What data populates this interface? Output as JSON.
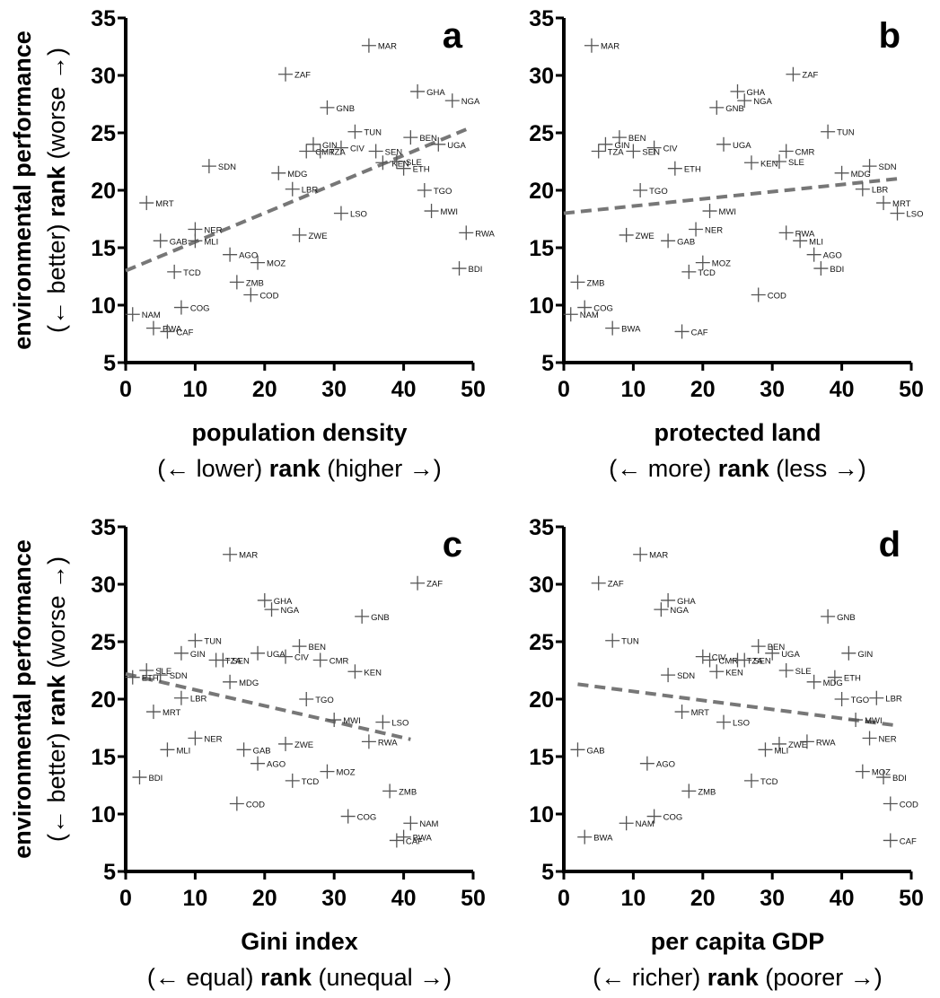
{
  "ylabel": {
    "line1": "environmental performance",
    "line2_pre": "(← better) ",
    "line2_bold": "rank",
    "line2_post": " (worse →)"
  },
  "chart_data": [
    {
      "type": "scatter",
      "panel": "a",
      "xtitle": "population density",
      "xsub": {
        "pre": "(← lower) ",
        "bold": "rank",
        "post": " (higher →)"
      },
      "xlim": [
        0,
        50
      ],
      "ylim": [
        5,
        35
      ],
      "xticks": [
        0,
        10,
        20,
        30,
        40,
        50
      ],
      "yticks": [
        5,
        10,
        15,
        20,
        25,
        30,
        35
      ],
      "trend": [
        [
          0,
          13
        ],
        [
          49,
          25.3
        ]
      ],
      "points": [
        {
          "label": "MAR",
          "x": 35,
          "y": 32.6
        },
        {
          "label": "ZAF",
          "x": 23,
          "y": 30.1
        },
        {
          "label": "GHA",
          "x": 42,
          "y": 28.6
        },
        {
          "label": "NGA",
          "x": 47,
          "y": 27.8
        },
        {
          "label": "GNB",
          "x": 29,
          "y": 27.2
        },
        {
          "label": "TUN",
          "x": 33,
          "y": 25.1
        },
        {
          "label": "BEN",
          "x": 41,
          "y": 24.6
        },
        {
          "label": "UGA",
          "x": 45,
          "y": 24.0
        },
        {
          "label": "GIN",
          "x": 27,
          "y": 24.0
        },
        {
          "label": "CMR",
          "x": 26,
          "y": 23.4
        },
        {
          "label": "TZA",
          "x": 28,
          "y": 23.4
        },
        {
          "label": "CIV",
          "x": 31,
          "y": 23.7
        },
        {
          "label": "SEN",
          "x": 36,
          "y": 23.4
        },
        {
          "label": "KEN",
          "x": 37,
          "y": 22.4
        },
        {
          "label": "SLE",
          "x": 39,
          "y": 22.5
        },
        {
          "label": "ETH",
          "x": 40,
          "y": 21.9
        },
        {
          "label": "SDN",
          "x": 12,
          "y": 22.1
        },
        {
          "label": "MDG",
          "x": 22,
          "y": 21.5
        },
        {
          "label": "LBR",
          "x": 24,
          "y": 20.1
        },
        {
          "label": "TGO",
          "x": 43,
          "y": 20.0
        },
        {
          "label": "MRT",
          "x": 3,
          "y": 18.9
        },
        {
          "label": "MWI",
          "x": 44,
          "y": 18.2
        },
        {
          "label": "LSO",
          "x": 31,
          "y": 18.0
        },
        {
          "label": "NER",
          "x": 10,
          "y": 16.6
        },
        {
          "label": "RWA",
          "x": 49,
          "y": 16.3
        },
        {
          "label": "ZWE",
          "x": 25,
          "y": 16.1
        },
        {
          "label": "GAB",
          "x": 5,
          "y": 15.6
        },
        {
          "label": "MLI",
          "x": 10,
          "y": 15.6
        },
        {
          "label": "AGO",
          "x": 15,
          "y": 14.4
        },
        {
          "label": "MOZ",
          "x": 19,
          "y": 13.7
        },
        {
          "label": "BDI",
          "x": 48,
          "y": 13.2
        },
        {
          "label": "TCD",
          "x": 7,
          "y": 12.9
        },
        {
          "label": "ZMB",
          "x": 16,
          "y": 12.0
        },
        {
          "label": "COD",
          "x": 18,
          "y": 10.9
        },
        {
          "label": "COG",
          "x": 8,
          "y": 9.8
        },
        {
          "label": "NAM",
          "x": 1,
          "y": 9.2
        },
        {
          "label": "BWA",
          "x": 4,
          "y": 8.0
        },
        {
          "label": "CAF",
          "x": 6,
          "y": 7.7
        }
      ]
    },
    {
      "type": "scatter",
      "panel": "b",
      "xtitle": "protected land",
      "xsub": {
        "pre": "(← more) ",
        "bold": "rank",
        "post": " (less →)"
      },
      "xlim": [
        0,
        50
      ],
      "ylim": [
        5,
        35
      ],
      "xticks": [
        0,
        10,
        20,
        30,
        40,
        50
      ],
      "yticks": [
        5,
        10,
        15,
        20,
        25,
        30,
        35
      ],
      "trend": [
        [
          0,
          18
        ],
        [
          48,
          21
        ]
      ],
      "points": [
        {
          "label": "MAR",
          "x": 4,
          "y": 32.6
        },
        {
          "label": "ZAF",
          "x": 33,
          "y": 30.1
        },
        {
          "label": "GHA",
          "x": 25,
          "y": 28.6
        },
        {
          "label": "NGA",
          "x": 26,
          "y": 27.8
        },
        {
          "label": "GNB",
          "x": 22,
          "y": 27.2
        },
        {
          "label": "TUN",
          "x": 38,
          "y": 25.1
        },
        {
          "label": "BEN",
          "x": 8,
          "y": 24.6
        },
        {
          "label": "GIN",
          "x": 6,
          "y": 24.0
        },
        {
          "label": "TZA",
          "x": 5,
          "y": 23.4
        },
        {
          "label": "SEN",
          "x": 10,
          "y": 23.4
        },
        {
          "label": "CIV",
          "x": 13,
          "y": 23.7
        },
        {
          "label": "UGA",
          "x": 23,
          "y": 24.0
        },
        {
          "label": "CMR",
          "x": 32,
          "y": 23.4
        },
        {
          "label": "KEN",
          "x": 27,
          "y": 22.4
        },
        {
          "label": "SLE",
          "x": 31,
          "y": 22.5
        },
        {
          "label": "ETH",
          "x": 16,
          "y": 21.9
        },
        {
          "label": "SDN",
          "x": 44,
          "y": 22.1
        },
        {
          "label": "MDG",
          "x": 40,
          "y": 21.5
        },
        {
          "label": "LBR",
          "x": 43,
          "y": 20.1
        },
        {
          "label": "TGO",
          "x": 11,
          "y": 20.0
        },
        {
          "label": "MRT",
          "x": 46,
          "y": 18.9
        },
        {
          "label": "MWI",
          "x": 21,
          "y": 18.2
        },
        {
          "label": "LSO",
          "x": 48,
          "y": 18.0
        },
        {
          "label": "NER",
          "x": 19,
          "y": 16.6
        },
        {
          "label": "RWA",
          "x": 32,
          "y": 16.3
        },
        {
          "label": "ZWE",
          "x": 9,
          "y": 16.1
        },
        {
          "label": "GAB",
          "x": 15,
          "y": 15.6
        },
        {
          "label": "MLI",
          "x": 34,
          "y": 15.6
        },
        {
          "label": "AGO",
          "x": 36,
          "y": 14.4
        },
        {
          "label": "MOZ",
          "x": 20,
          "y": 13.7
        },
        {
          "label": "BDI",
          "x": 37,
          "y": 13.2
        },
        {
          "label": "TCD",
          "x": 18,
          "y": 12.9
        },
        {
          "label": "ZMB",
          "x": 2,
          "y": 12.0
        },
        {
          "label": "COD",
          "x": 28,
          "y": 10.9
        },
        {
          "label": "COG",
          "x": 3,
          "y": 9.8
        },
        {
          "label": "NAM",
          "x": 1,
          "y": 9.2
        },
        {
          "label": "BWA",
          "x": 7,
          "y": 8.0
        },
        {
          "label": "CAF",
          "x": 17,
          "y": 7.7
        }
      ]
    },
    {
      "type": "scatter",
      "panel": "c",
      "xtitle": "Gini index",
      "xsub": {
        "pre": "(← equal) ",
        "bold": "rank",
        "post": " (unequal →)"
      },
      "xlim": [
        0,
        50
      ],
      "ylim": [
        5,
        35
      ],
      "xticks": [
        0,
        10,
        20,
        30,
        40,
        50
      ],
      "yticks": [
        5,
        10,
        15,
        20,
        25,
        30,
        35
      ],
      "trend": [
        [
          0,
          22.2
        ],
        [
          41,
          16.5
        ]
      ],
      "points": [
        {
          "label": "MAR",
          "x": 15,
          "y": 32.6
        },
        {
          "label": "ZAF",
          "x": 42,
          "y": 30.1
        },
        {
          "label": "GHA",
          "x": 20,
          "y": 28.6
        },
        {
          "label": "NGA",
          "x": 21,
          "y": 27.8
        },
        {
          "label": "GNB",
          "x": 34,
          "y": 27.2
        },
        {
          "label": "TUN",
          "x": 10,
          "y": 25.1
        },
        {
          "label": "BEN",
          "x": 25,
          "y": 24.6
        },
        {
          "label": "GIN",
          "x": 8,
          "y": 24.0
        },
        {
          "label": "TZA",
          "x": 13,
          "y": 23.4
        },
        {
          "label": "SEN",
          "x": 14,
          "y": 23.4
        },
        {
          "label": "UGA",
          "x": 19,
          "y": 24.0
        },
        {
          "label": "CIV",
          "x": 23,
          "y": 23.7
        },
        {
          "label": "CMR",
          "x": 28,
          "y": 23.4
        },
        {
          "label": "KEN",
          "x": 33,
          "y": 22.4
        },
        {
          "label": "SLE",
          "x": 3,
          "y": 22.5
        },
        {
          "label": "ETH",
          "x": 1,
          "y": 21.9
        },
        {
          "label": "SDN",
          "x": 5,
          "y": 22.1
        },
        {
          "label": "MDG",
          "x": 15,
          "y": 21.5
        },
        {
          "label": "LBR",
          "x": 8,
          "y": 20.1
        },
        {
          "label": "TGO",
          "x": 26,
          "y": 20.0
        },
        {
          "label": "MRT",
          "x": 4,
          "y": 18.9
        },
        {
          "label": "MWI",
          "x": 30,
          "y": 18.2
        },
        {
          "label": "LSO",
          "x": 37,
          "y": 18.0
        },
        {
          "label": "NER",
          "x": 10,
          "y": 16.6
        },
        {
          "label": "RWA",
          "x": 35,
          "y": 16.3
        },
        {
          "label": "ZWE",
          "x": 23,
          "y": 16.1
        },
        {
          "label": "GAB",
          "x": 17,
          "y": 15.6
        },
        {
          "label": "MLI",
          "x": 6,
          "y": 15.6
        },
        {
          "label": "AGO",
          "x": 19,
          "y": 14.4
        },
        {
          "label": "MOZ",
          "x": 29,
          "y": 13.7
        },
        {
          "label": "BDI",
          "x": 2,
          "y": 13.2
        },
        {
          "label": "TCD",
          "x": 24,
          "y": 12.9
        },
        {
          "label": "ZMB",
          "x": 38,
          "y": 12.0
        },
        {
          "label": "COD",
          "x": 16,
          "y": 10.9
        },
        {
          "label": "COG",
          "x": 32,
          "y": 9.8
        },
        {
          "label": "NAM",
          "x": 41,
          "y": 9.2
        },
        {
          "label": "BWA",
          "x": 40,
          "y": 8.0
        },
        {
          "label": "CAF",
          "x": 39,
          "y": 7.7
        }
      ]
    },
    {
      "type": "scatter",
      "panel": "d",
      "xtitle": "per capita GDP",
      "xsub": {
        "pre": "(← richer) ",
        "bold": "rank",
        "post": " (poorer →)"
      },
      "xlim": [
        0,
        50
      ],
      "ylim": [
        5,
        35
      ],
      "xticks": [
        0,
        10,
        20,
        30,
        40,
        50
      ],
      "yticks": [
        5,
        10,
        15,
        20,
        25,
        30,
        35
      ],
      "trend": [
        [
          2,
          21.3
        ],
        [
          48,
          17.7
        ]
      ],
      "points": [
        {
          "label": "MAR",
          "x": 11,
          "y": 32.6
        },
        {
          "label": "ZAF",
          "x": 5,
          "y": 30.1
        },
        {
          "label": "GHA",
          "x": 15,
          "y": 28.6
        },
        {
          "label": "NGA",
          "x": 14,
          "y": 27.8
        },
        {
          "label": "GNB",
          "x": 38,
          "y": 27.2
        },
        {
          "label": "TUN",
          "x": 7,
          "y": 25.1
        },
        {
          "label": "BEN",
          "x": 28,
          "y": 24.6
        },
        {
          "label": "GIN",
          "x": 41,
          "y": 24.0
        },
        {
          "label": "CIV",
          "x": 20,
          "y": 23.7
        },
        {
          "label": "CMR",
          "x": 21,
          "y": 23.4
        },
        {
          "label": "TZA",
          "x": 25,
          "y": 23.4
        },
        {
          "label": "SEN",
          "x": 26,
          "y": 23.4
        },
        {
          "label": "UGA",
          "x": 30,
          "y": 24.0
        },
        {
          "label": "KEN",
          "x": 22,
          "y": 22.4
        },
        {
          "label": "SLE",
          "x": 32,
          "y": 22.5
        },
        {
          "label": "ETH",
          "x": 39,
          "y": 21.9
        },
        {
          "label": "SDN",
          "x": 15,
          "y": 22.1
        },
        {
          "label": "MDG",
          "x": 36,
          "y": 21.5
        },
        {
          "label": "LBR",
          "x": 45,
          "y": 20.1
        },
        {
          "label": "TGO",
          "x": 40,
          "y": 20.0
        },
        {
          "label": "MRT",
          "x": 17,
          "y": 18.9
        },
        {
          "label": "MWI",
          "x": 42,
          "y": 18.2
        },
        {
          "label": "LSO",
          "x": 23,
          "y": 18.0
        },
        {
          "label": "NER",
          "x": 44,
          "y": 16.6
        },
        {
          "label": "RWA",
          "x": 35,
          "y": 16.3
        },
        {
          "label": "ZWE",
          "x": 31,
          "y": 16.1
        },
        {
          "label": "MLI",
          "x": 29,
          "y": 15.6
        },
        {
          "label": "GAB",
          "x": 2,
          "y": 15.6
        },
        {
          "label": "AGO",
          "x": 12,
          "y": 14.4
        },
        {
          "label": "MOZ",
          "x": 43,
          "y": 13.7
        },
        {
          "label": "BDI",
          "x": 46,
          "y": 13.2
        },
        {
          "label": "TCD",
          "x": 27,
          "y": 12.9
        },
        {
          "label": "ZMB",
          "x": 18,
          "y": 12.0
        },
        {
          "label": "COD",
          "x": 47,
          "y": 10.9
        },
        {
          "label": "COG",
          "x": 13,
          "y": 9.8
        },
        {
          "label": "NAM",
          "x": 9,
          "y": 9.2
        },
        {
          "label": "BWA",
          "x": 3,
          "y": 8.0
        },
        {
          "label": "CAF",
          "x": 47,
          "y": 7.7
        }
      ]
    }
  ]
}
